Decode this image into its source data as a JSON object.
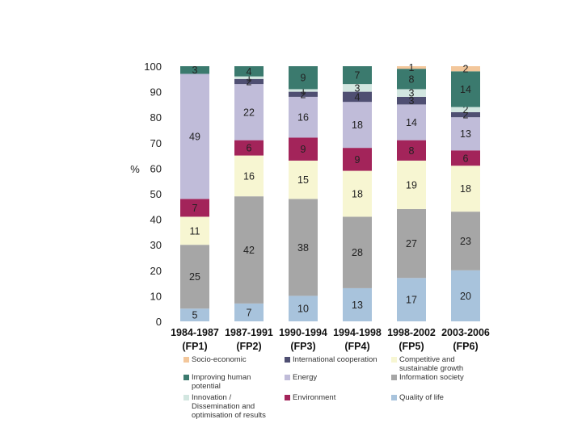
{
  "chart_data": {
    "type": "bar",
    "stacked": true,
    "title": "",
    "xlabel": "",
    "ylabel": "%",
    "ylim": [
      0,
      100
    ],
    "yticks": [
      "0",
      "10",
      "20",
      "30",
      "40",
      "50",
      "60",
      "70",
      "80",
      "90",
      "100"
    ],
    "grid": false,
    "legend_position": "bottom",
    "categories": [
      [
        "1984-1987",
        "(FP1)"
      ],
      [
        "1987-1991",
        "(FP2)"
      ],
      [
        "1990-1994",
        "(FP3)"
      ],
      [
        "1994-1998",
        "(FP4)"
      ],
      [
        "1998-2002",
        "(FP5)"
      ],
      [
        "2003-2006",
        "(FP6)"
      ]
    ],
    "series": [
      {
        "name": "Quality of life",
        "color": "#a8c3dc",
        "values": [
          5,
          7,
          10,
          13,
          17,
          20
        ],
        "labels": [
          "5",
          "7",
          "10",
          "13",
          "17",
          "20"
        ]
      },
      {
        "name": "Information society",
        "color": "#a6a6a6",
        "values": [
          25,
          42,
          38,
          28,
          27,
          23
        ],
        "labels": [
          "25",
          "42",
          "38",
          "28",
          "27",
          "23"
        ]
      },
      {
        "name": "Competitive and sustainable growth",
        "color": "#f7f6d2",
        "values": [
          11,
          16,
          15,
          18,
          19,
          18
        ],
        "labels": [
          "11",
          "16",
          "15",
          "18",
          "19",
          "18"
        ]
      },
      {
        "name": "Environment",
        "color": "#a3245a",
        "values": [
          7,
          6,
          9,
          9,
          8,
          6
        ],
        "labels": [
          "7",
          "6",
          "9",
          "9",
          "8",
          "6"
        ]
      },
      {
        "name": "Energy",
        "color": "#c0bcd9",
        "values": [
          49,
          22,
          16,
          18,
          14,
          13
        ],
        "labels": [
          "49",
          "22",
          "16",
          "18",
          "14",
          "13"
        ]
      },
      {
        "name": "International cooperation",
        "color": "#4f4f72",
        "values": [
          0,
          2,
          2,
          4,
          3,
          2
        ],
        "labels": [
          "",
          "2",
          "2",
          "4",
          "3",
          "2"
        ]
      },
      {
        "name": "Innovation / Dissemination and optimisation of results",
        "color": "#d2e6e0",
        "values": [
          0,
          1,
          1,
          3,
          3,
          2
        ],
        "labels": [
          "",
          "1",
          "1",
          "3",
          "3",
          "2"
        ]
      },
      {
        "name": "Improving human potential",
        "color": "#3b7a6e",
        "values": [
          3,
          4,
          9,
          7,
          8,
          14
        ],
        "labels": [
          "3",
          "4",
          "9",
          "7",
          "8",
          "14"
        ]
      },
      {
        "name": "Socio-economic",
        "color": "#f3c79b",
        "values": [
          0,
          0,
          0,
          0,
          1,
          2
        ],
        "labels": [
          "",
          "",
          "",
          "",
          "1",
          "2"
        ]
      }
    ],
    "legend_items": [
      {
        "series": 8,
        "lines": [
          "Socio-economic"
        ]
      },
      {
        "series": 5,
        "lines": [
          "International cooperation"
        ]
      },
      {
        "series": 2,
        "lines": [
          "Competitive and",
          "sustainable growth"
        ]
      },
      {
        "series": 7,
        "lines": [
          "Improving human",
          "potential"
        ]
      },
      {
        "series": 4,
        "lines": [
          "Energy"
        ]
      },
      {
        "series": 1,
        "lines": [
          "Information society"
        ]
      },
      {
        "series": 6,
        "lines": [
          "Innovation /",
          "Dissemination and",
          "optimisation of results"
        ]
      },
      {
        "series": 3,
        "lines": [
          "Environment"
        ]
      },
      {
        "series": 0,
        "lines": [
          "Quality of life"
        ]
      }
    ]
  }
}
